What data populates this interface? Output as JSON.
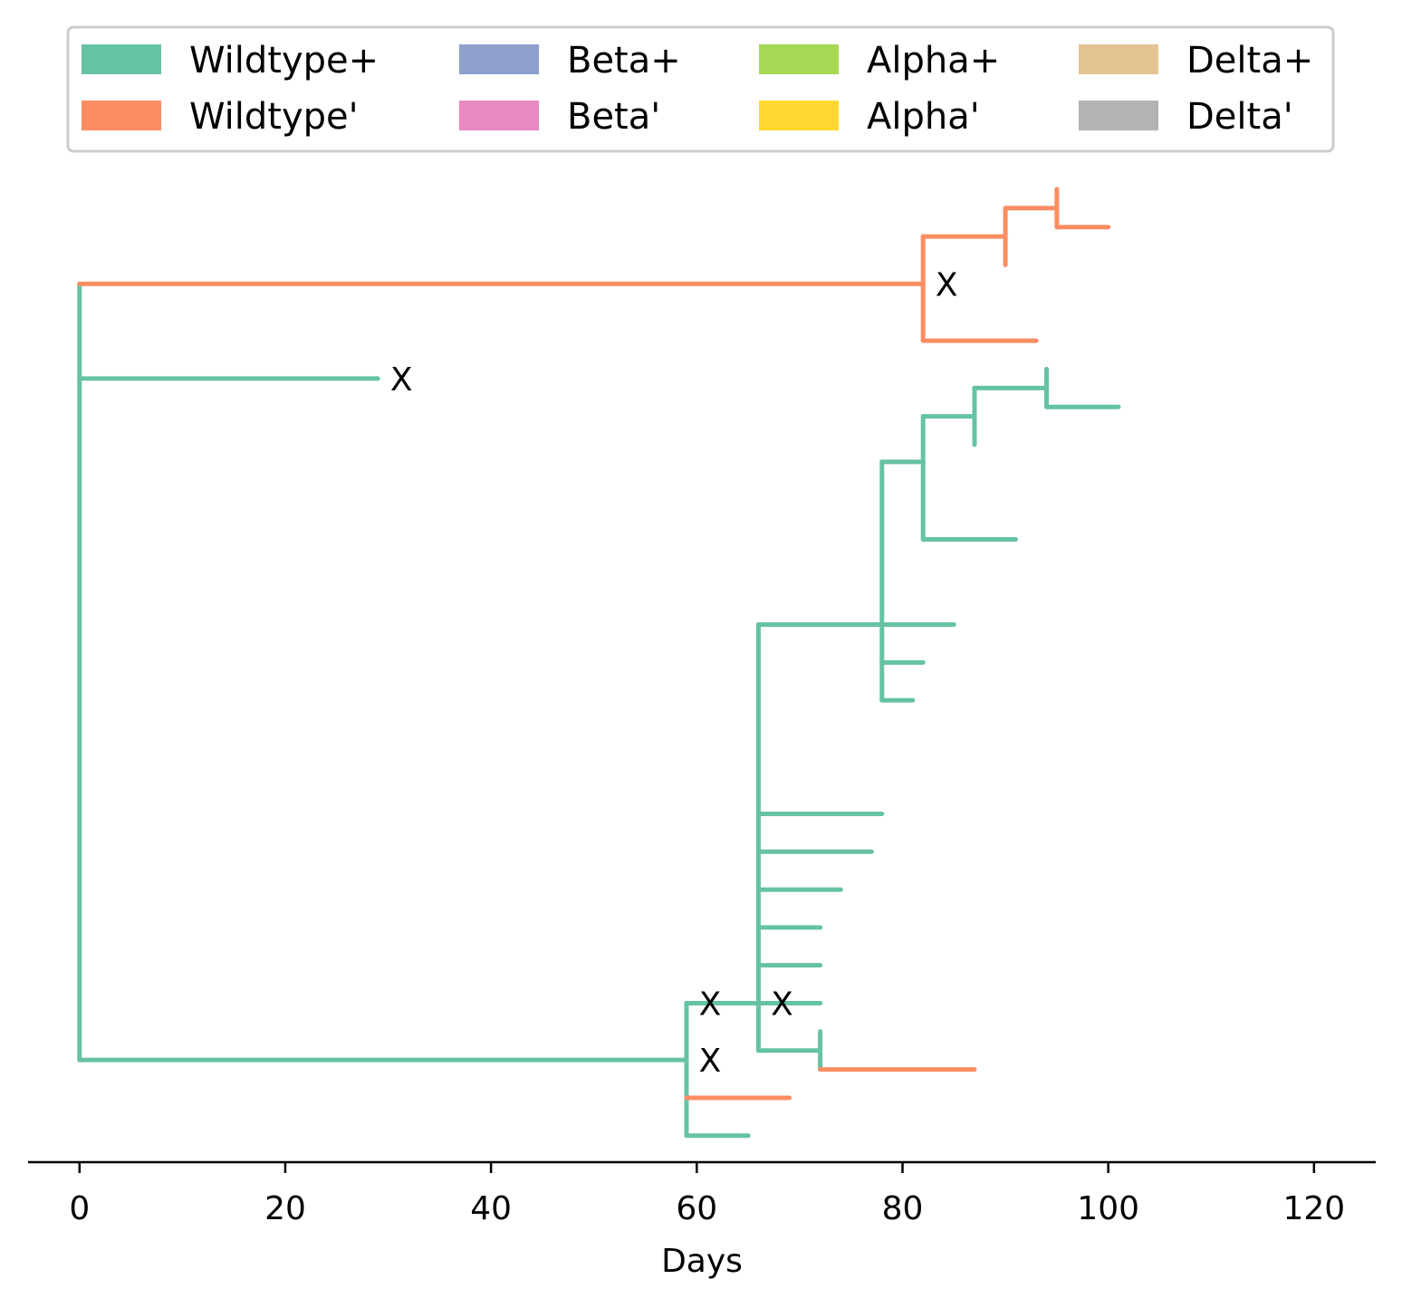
{
  "chart_data": {
    "type": "tree",
    "xlabel": "Days",
    "ylabel": "",
    "title": "",
    "xlim": [
      -5,
      126
    ],
    "ylim": [
      0.3,
      26.5
    ],
    "xticks": [
      {
        "value": 0,
        "label": "0"
      },
      {
        "value": 20,
        "label": "20"
      },
      {
        "value": 40,
        "label": "40"
      },
      {
        "value": 60,
        "label": "60"
      },
      {
        "value": 80,
        "label": "80"
      },
      {
        "value": 100,
        "label": "100"
      },
      {
        "value": 120,
        "label": "120"
      }
    ],
    "legend": {
      "placement": "top",
      "columns": 4,
      "entries": [
        {
          "label": "Wildtype+",
          "color": "#66c2a5"
        },
        {
          "label": "Wildtype'",
          "color": "#fc8d62"
        },
        {
          "label": "Beta+",
          "color": "#8da0cb"
        },
        {
          "label": "Beta'",
          "color": "#e78ac3"
        },
        {
          "label": "Alpha+",
          "color": "#a6d854"
        },
        {
          "label": "Alpha'",
          "color": "#ffd92f"
        },
        {
          "label": "Delta+",
          "color": "#e5c494"
        },
        {
          "label": "Delta'",
          "color": "#b3b3b3"
        }
      ]
    },
    "series": [
      {
        "color": "#66c2a5",
        "segments": [
          [
            0,
            3,
            0,
            23.5
          ],
          [
            0,
            21,
            29,
            21
          ],
          [
            0,
            3,
            59,
            3
          ],
          [
            59,
            1,
            59,
            4.5
          ],
          [
            59,
            1,
            65,
            1
          ],
          [
            59,
            4.5,
            66,
            4.5
          ],
          [
            66,
            3.25,
            66,
            14.5
          ],
          [
            66,
            3.25,
            72,
            3.25
          ],
          [
            72,
            2.75,
            72,
            3.75
          ],
          [
            66,
            4.5,
            72,
            4.5
          ],
          [
            66,
            5.5,
            72,
            5.5
          ],
          [
            66,
            6.5,
            72,
            6.5
          ],
          [
            66,
            7.5,
            74,
            7.5
          ],
          [
            66,
            8.5,
            77,
            8.5
          ],
          [
            66,
            9.5,
            78,
            9.5
          ],
          [
            66,
            14.5,
            78,
            14.5
          ],
          [
            78,
            12.5,
            78,
            18.8
          ],
          [
            78,
            12.5,
            81,
            12.5
          ],
          [
            78,
            13.5,
            82,
            13.5
          ],
          [
            78,
            14.5,
            85,
            14.5
          ],
          [
            78,
            18.8,
            82,
            18.8
          ],
          [
            82,
            16.75,
            82,
            20
          ],
          [
            82,
            16.75,
            91,
            16.75
          ],
          [
            82,
            20,
            87,
            20
          ],
          [
            87,
            19.25,
            87,
            20.75
          ],
          [
            87,
            20.75,
            94,
            20.75
          ],
          [
            94,
            20.25,
            94,
            21.25
          ],
          [
            94,
            20.25,
            101,
            20.25
          ]
        ]
      },
      {
        "color": "#fc8d62",
        "segments": [
          [
            0,
            23.5,
            82,
            23.5
          ],
          [
            82,
            22,
            82,
            24.75
          ],
          [
            82,
            22,
            93,
            22
          ],
          [
            82,
            24.75,
            90,
            24.75
          ],
          [
            90,
            24,
            90,
            25.5
          ],
          [
            90,
            25.5,
            95,
            25.5
          ],
          [
            95,
            25,
            95,
            26
          ],
          [
            95,
            25,
            100,
            25
          ],
          [
            59,
            2,
            69,
            2
          ],
          [
            72,
            2.75,
            87,
            2.75
          ]
        ]
      }
    ],
    "annotations": [
      {
        "text": "X",
        "x": 83.2,
        "y": 23.5
      },
      {
        "text": "X",
        "x": 30.2,
        "y": 21
      },
      {
        "text": "X",
        "x": 67.2,
        "y": 4.5
      },
      {
        "text": "X",
        "x": 60.2,
        "y": 3
      },
      {
        "text": "X",
        "x": 60.2,
        "y": 4.5
      }
    ]
  }
}
